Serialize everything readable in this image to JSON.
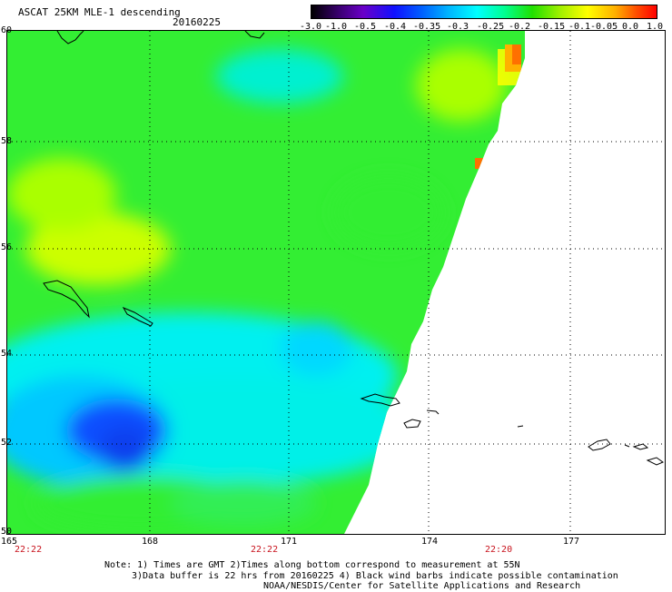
{
  "header": {
    "title": "ASCAT 25KM MLE-1 descending",
    "date": "20160225"
  },
  "colorbar": {
    "labels": [
      "-3.0",
      "-1.0",
      "-0.5",
      "-0.4",
      "-0.35",
      "-0.3",
      "-0.25",
      "-0.2",
      "-0.15",
      "-0.1",
      "-0.05",
      "0.0",
      "1.0"
    ],
    "colors": [
      "#000000",
      "#6a00c8",
      "#1010ff",
      "#0060ff",
      "#00b8ff",
      "#00ffff",
      "#00ff90",
      "#20e000",
      "#a0f000",
      "#ffff00",
      "#ffb000",
      "#ff5000",
      "#ff0000"
    ]
  },
  "map": {
    "lat_labels": [
      "60",
      "58",
      "56",
      "54",
      "52",
      "50"
    ],
    "lon_labels": [
      "165",
      "168",
      "171",
      "174",
      "177"
    ],
    "time_labels": [
      "22:22",
      "22:22",
      "22:20"
    ],
    "colors": {
      "swath_green": "#33ee33",
      "swath_cyan": "#00f0f0",
      "swath_blue": "#1050ff",
      "swath_yellow": "#ffff00",
      "swath_orange": "#ff7000",
      "land": "#ffffff"
    }
  },
  "notes": {
    "line1": "Note: 1) Times are GMT 2)Times along bottom correspond to measurement at 55N",
    "line2": "3)Data buffer is 22 hrs from 20160225 4) Black wind barbs indicate possible contamination",
    "line3": "NOAA/NESDIS/Center for Satellite Applications and Research"
  }
}
